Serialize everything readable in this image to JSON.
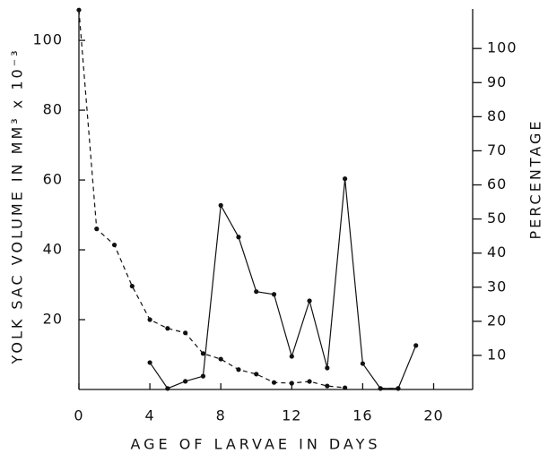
{
  "chart_data": {
    "type": "line",
    "x_label": "AGE OF LARVAE IN DAYS",
    "y_label": "YOLK SAC VOLUME IN MM³ x 10⁻³",
    "y2_label": "PERCENTAGE",
    "x": [
      0,
      1,
      2,
      3,
      4,
      5,
      6,
      7,
      8,
      9,
      10,
      11,
      12,
      13,
      14,
      15,
      16,
      17,
      18,
      19
    ],
    "xlim": [
      0,
      22.2
    ],
    "xticks": [
      0,
      4,
      8,
      12,
      16,
      20
    ],
    "ylim": [
      0,
      109
    ],
    "yticks": [
      20,
      40,
      60,
      80,
      100
    ],
    "y2lim": [
      0,
      111.6
    ],
    "y2ticks": [
      10,
      20,
      30,
      40,
      50,
      60,
      70,
      80,
      90,
      100
    ],
    "series": [
      {
        "color": "#111111",
        "linestyle": "dashed",
        "values": [
          108.7,
          46,
          41.4,
          29.6,
          20,
          17.5,
          16.2,
          10.3,
          8.7,
          5.7,
          4.4,
          2,
          1.8,
          2.3,
          1,
          0.5,
          null,
          0.3,
          0.3,
          null
        ]
      },
      {
        "color": "#111111",
        "linestyle": "solid",
        "axis": "y2",
        "values": [
          null,
          null,
          null,
          null,
          7.9,
          0.3,
          2.4,
          3.9,
          54,
          44.7,
          28.7,
          27.9,
          9.7,
          26,
          6.3,
          61.8,
          7.6,
          0.3,
          0.3,
          12.9
        ]
      }
    ]
  }
}
